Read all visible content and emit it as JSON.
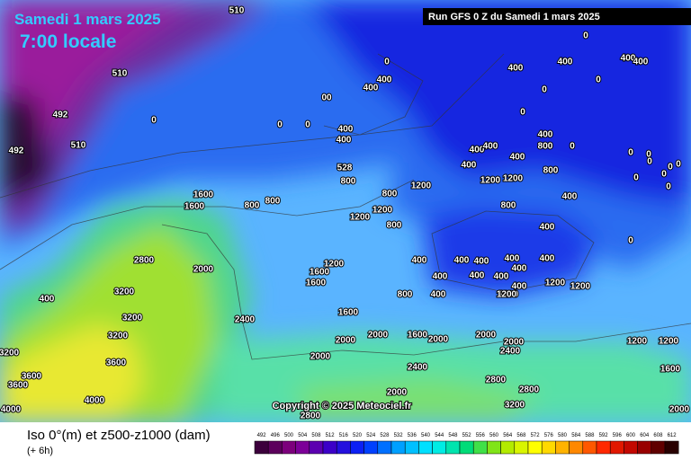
{
  "header": {
    "date": "Samedi 1 mars 2025",
    "time": "7:00 locale",
    "run": "Run GFS 0 Z du Samedi 1 mars 2025"
  },
  "map_labels": [
    510,
    510,
    492,
    510,
    492,
    0,
    0,
    0,
    "00",
    400,
    400,
    0,
    400,
    400,
    528,
    800,
    1600,
    1600,
    800,
    800,
    1200,
    800,
    1200,
    1200,
    800,
    2800,
    2000,
    1200,
    1600,
    1600,
    400,
    400,
    400,
    800,
    1200,
    1600,
    2400,
    3200,
    3200,
    3200,
    3600,
    3600,
    3600,
    4000,
    4000,
    400,
    3200,
    2000,
    2000,
    1600,
    2000,
    2400,
    2000,
    2000,
    2400,
    2800,
    2800,
    3200,
    2800,
    2000,
    2000,
    1200,
    1200,
    1600,
    2000,
    1200,
    1200,
    400,
    400,
    0,
    400,
    400,
    0,
    0,
    0,
    400,
    800,
    0,
    0,
    0,
    0,
    0,
    0,
    0,
    0,
    0,
    400,
    400,
    0,
    400,
    800,
    1200,
    1200,
    800,
    400,
    400,
    400,
    400,
    400,
    400,
    400,
    400,
    400,
    400,
    400,
    1200
  ],
  "copyright": "Copyright © 2025 Meteociel.fr",
  "footer": {
    "caption": "Iso 0°(m) et z500-z1000 (dam)",
    "step": "(+ 6h)"
  },
  "legend": {
    "labels": [
      492,
      496,
      500,
      504,
      508,
      512,
      516,
      520,
      524,
      528,
      532,
      536,
      540,
      544,
      548,
      552,
      556,
      560,
      564,
      568,
      572,
      576,
      580,
      584,
      588,
      592,
      596,
      600,
      604,
      608,
      612
    ]
  }
}
